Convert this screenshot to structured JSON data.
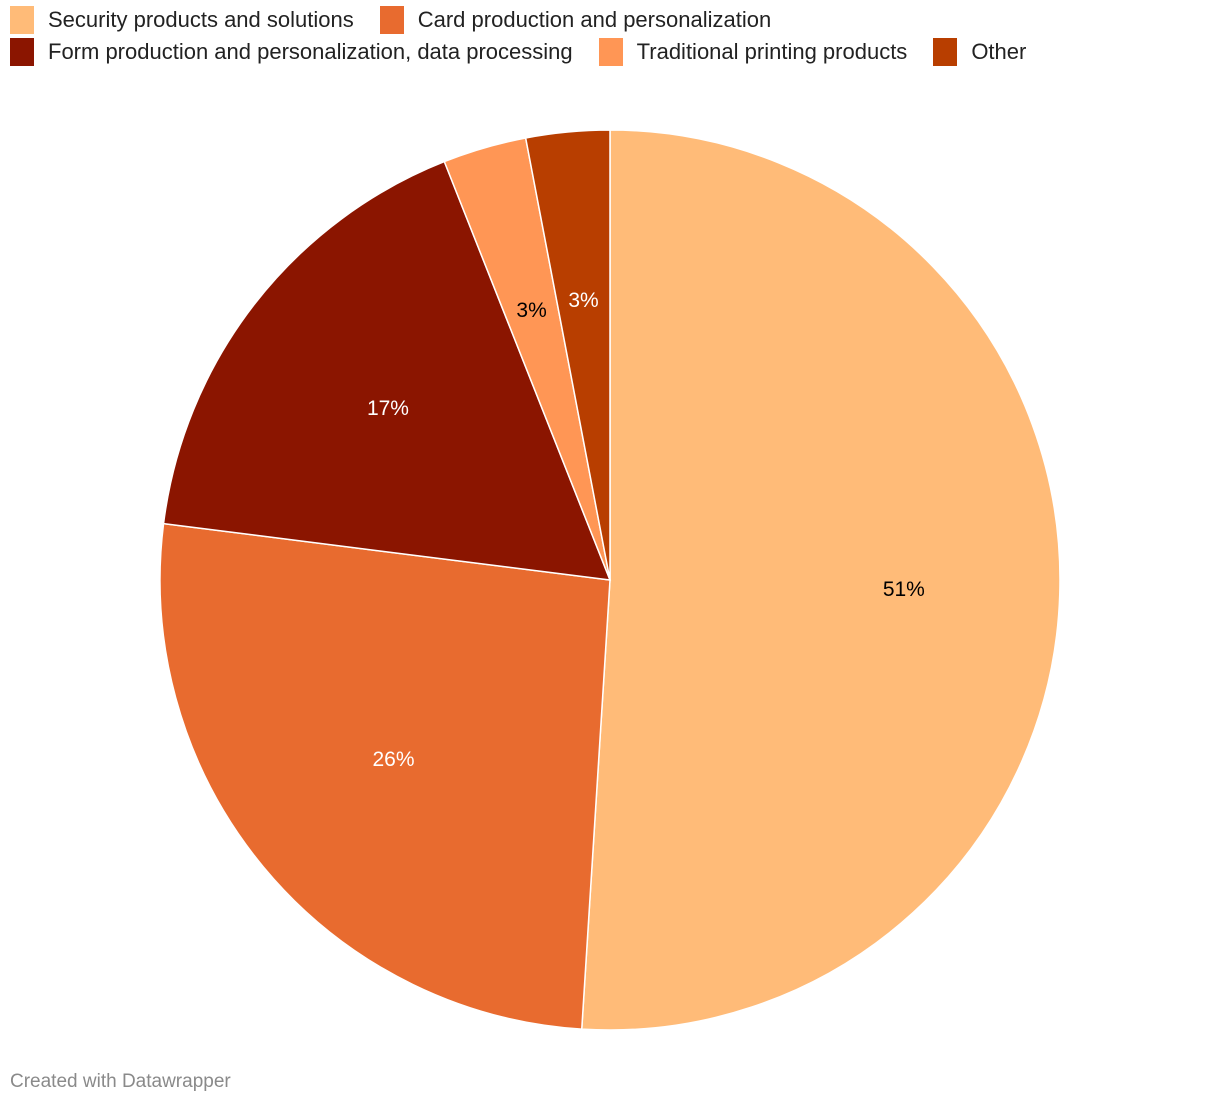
{
  "chart_data": {
    "type": "pie",
    "start": "top",
    "direction": "clockwise",
    "unit": "%",
    "legend_position": "top",
    "slices": [
      {
        "name": "Security products and solutions",
        "value": 51,
        "label": "51%",
        "color": "#ffbb78",
        "label_color": "#000000"
      },
      {
        "name": "Card production and personalization",
        "value": 26,
        "label": "26%",
        "color": "#e86b2f",
        "label_color": "#ffffff"
      },
      {
        "name": "Form production and personalization, data processing",
        "value": 17,
        "label": "17%",
        "color": "#8b1500",
        "label_color": "#ffffff"
      },
      {
        "name": "Traditional printing products",
        "value": 3,
        "label": "3%",
        "color": "#ff9655",
        "label_color": "#000000"
      },
      {
        "name": "Other",
        "value": 3,
        "label": "3%",
        "color": "#b83e00",
        "label_color": "#ffffff"
      }
    ]
  },
  "footer": {
    "credit": "Created with Datawrapper"
  }
}
